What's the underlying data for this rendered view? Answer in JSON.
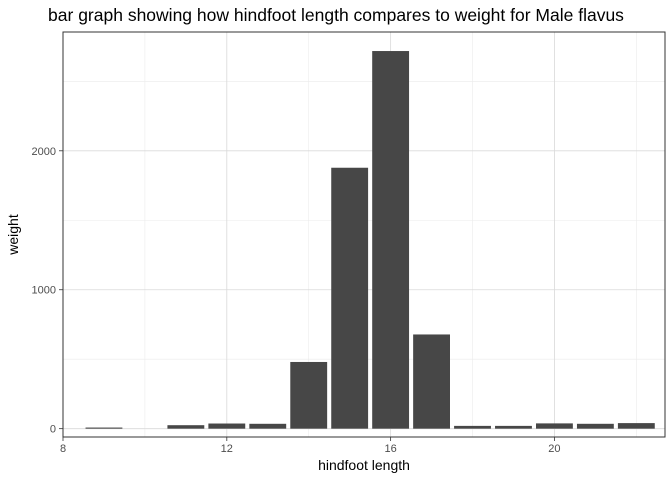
{
  "chart_data": {
    "type": "bar",
    "title": "bar graph showing how hindfoot length compares to weight for Male flavus",
    "xlabel": "hindfoot length",
    "ylabel": "weight",
    "x": [
      9,
      11,
      12,
      13,
      14,
      15,
      16,
      17,
      18,
      19,
      20,
      21,
      22
    ],
    "values": [
      8,
      25,
      37,
      35,
      480,
      1878,
      2718,
      678,
      20,
      20,
      38,
      35,
      40
    ],
    "xlim": [
      8,
      22.7
    ],
    "ylim": [
      -60,
      2855
    ],
    "x_ticks": [
      8,
      12,
      16,
      20
    ],
    "y_ticks": [
      0,
      1000,
      2000
    ],
    "x_tick_labels": [
      "8",
      "12",
      "16",
      "20"
    ],
    "y_tick_labels": [
      "0",
      "1000",
      "2000"
    ],
    "grid": true,
    "bar_color": "#474747",
    "panel_background": "#ffffff",
    "grid_color": "#d9d9d9"
  }
}
